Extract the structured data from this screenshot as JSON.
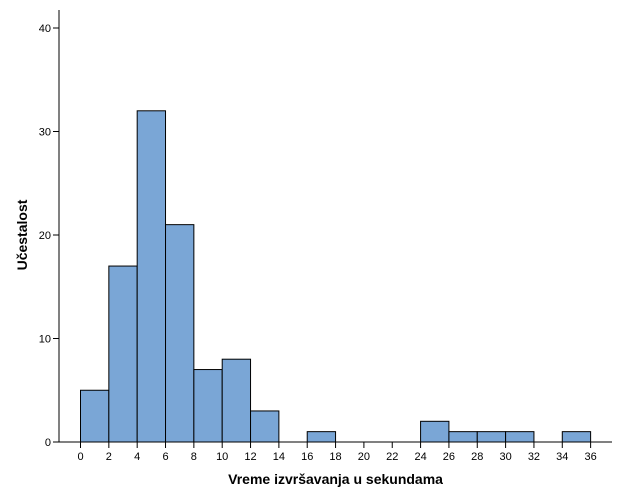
{
  "chart_data": {
    "type": "bar",
    "title": "",
    "xlabel": "Vreme izvršavanja u sekundama",
    "ylabel": "Učestalost",
    "bin_width": 2,
    "x_ticks": [
      0,
      2,
      4,
      6,
      8,
      10,
      12,
      14,
      16,
      18,
      20,
      22,
      24,
      26,
      28,
      30,
      32,
      34,
      36
    ],
    "y_ticks": [
      0,
      10,
      20,
      30,
      40
    ],
    "xlim": [
      -1,
      37
    ],
    "ylim": [
      0,
      40
    ],
    "bins": [
      {
        "start": 0,
        "end": 2,
        "value": 5
      },
      {
        "start": 2,
        "end": 4,
        "value": 17
      },
      {
        "start": 4,
        "end": 6,
        "value": 32
      },
      {
        "start": 6,
        "end": 8,
        "value": 21
      },
      {
        "start": 8,
        "end": 10,
        "value": 7
      },
      {
        "start": 10,
        "end": 12,
        "value": 8
      },
      {
        "start": 12,
        "end": 14,
        "value": 3
      },
      {
        "start": 16,
        "end": 18,
        "value": 1
      },
      {
        "start": 24,
        "end": 26,
        "value": 2
      },
      {
        "start": 26,
        "end": 28,
        "value": 1
      },
      {
        "start": 28,
        "end": 30,
        "value": 1
      },
      {
        "start": 30,
        "end": 32,
        "value": 1
      },
      {
        "start": 34,
        "end": 36,
        "value": 1
      }
    ],
    "bar_color": "#7aa6d6",
    "grid": false,
    "legend": "none"
  }
}
